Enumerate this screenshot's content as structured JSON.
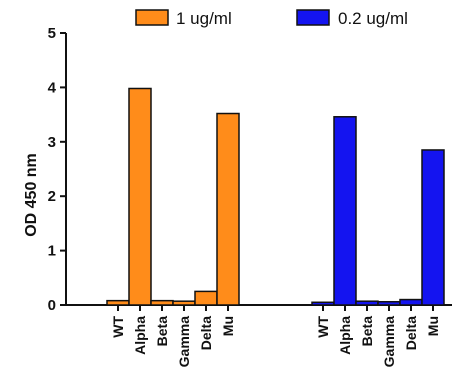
{
  "chart_data": {
    "type": "bar",
    "title": "",
    "xlabel": "",
    "ylabel": "OD 450 nm",
    "ylim": [
      0,
      5
    ],
    "yticks": [
      "0",
      "1",
      "2",
      "3",
      "4",
      "5"
    ],
    "grid": false,
    "legend_position": "top",
    "categories": [
      "WT",
      "Alpha",
      "Beta",
      "Gamma",
      "Delta",
      "Mu"
    ],
    "series": [
      {
        "name": "1 ug/ml",
        "color": "#FF8C1A",
        "values": [
          0.08,
          3.98,
          0.08,
          0.07,
          0.25,
          3.52
        ]
      },
      {
        "name": "0.2 ug/ml",
        "color": "#1414F0",
        "values": [
          0.05,
          3.46,
          0.07,
          0.06,
          0.1,
          2.85
        ]
      }
    ]
  }
}
